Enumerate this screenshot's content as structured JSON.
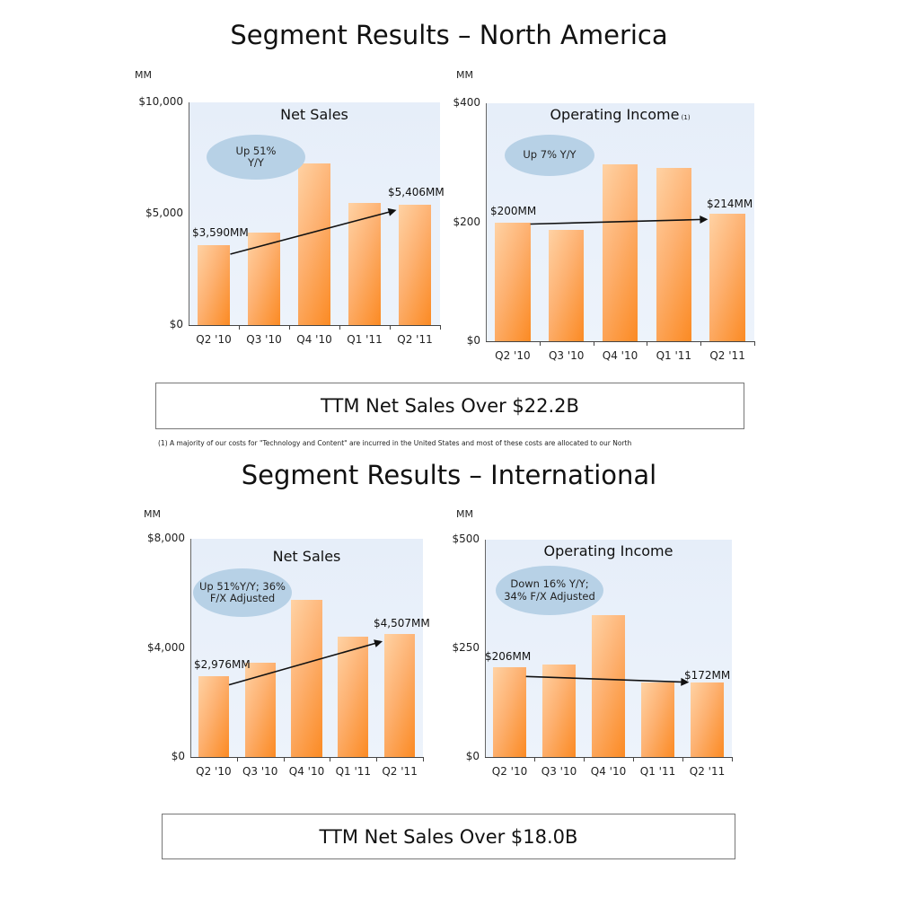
{
  "sections": [
    {
      "title": "Segment Results – North America",
      "ttm": "TTM Net Sales Over $22.2B",
      "footnote": "(1)   A majority of our costs for \"Technology and Content\" are incurred in the United States and most of these costs are allocated to our North"
    },
    {
      "title": "Segment Results – International",
      "ttm": "TTM Net Sales Over $18.0B"
    }
  ],
  "chart_data": [
    {
      "id": "na-net-sales",
      "type": "bar",
      "title": "Net Sales",
      "unit_label": "MM",
      "categories": [
        "Q2 '10",
        "Q3 '10",
        "Q4 '10",
        "Q1 '11",
        "Q2 '11"
      ],
      "values": [
        3590,
        4150,
        7260,
        5480,
        5406
      ],
      "yticks": [
        "$0",
        "$5,000",
        "$10,000"
      ],
      "ylim": [
        0,
        10000
      ],
      "bubble": "Up 51% Y/Y",
      "bubble_lines": [
        "Up 51%",
        "Y/Y"
      ],
      "start_label": "$3,590MM",
      "end_label": "$5,406MM",
      "annotation": "arrow from Q2 '10 to Q2 '11",
      "color": "#fb8a23",
      "background": "#e8f0fa"
    },
    {
      "id": "na-operating-income",
      "type": "bar",
      "title": "Operating Income",
      "title_note": "(1)",
      "unit_label": "MM",
      "categories": [
        "Q2 '10",
        "Q3 '10",
        "Q4 '10",
        "Q1 '11",
        "Q2 '11"
      ],
      "values": [
        200,
        187,
        297,
        292,
        214
      ],
      "yticks": [
        "$0",
        "$200",
        "$400"
      ],
      "ylim": [
        0,
        400
      ],
      "bubble": "Up 7% Y/Y",
      "bubble_lines": [
        "Up 7% Y/Y"
      ],
      "start_label": "$200MM",
      "end_label": "$214MM",
      "annotation": "arrow from Q2 '10 to Q2 '11",
      "color": "#fb8a23",
      "background": "#e8f0fa"
    },
    {
      "id": "intl-net-sales",
      "type": "bar",
      "title": "Net Sales",
      "unit_label": "MM",
      "categories": [
        "Q2 '10",
        "Q3 '10",
        "Q4 '10",
        "Q1 '11",
        "Q2 '11"
      ],
      "values": [
        2976,
        3450,
        5760,
        4410,
        4507
      ],
      "yticks": [
        "$0",
        "$4,000",
        "$8,000"
      ],
      "ylim": [
        0,
        8000
      ],
      "bubble": "Up 51%Y/Y; 36% F/X Adjusted",
      "bubble_lines": [
        "Up 51%Y/Y; 36%",
        "F/X Adjusted"
      ],
      "start_label": "$2,976MM",
      "end_label": "$4,507MM",
      "annotation": "arrow from Q2 '10 to Q2 '11",
      "color": "#fb8a23",
      "background": "#e8f0fa"
    },
    {
      "id": "intl-operating-income",
      "type": "bar",
      "title": "Operating Income",
      "unit_label": "MM",
      "categories": [
        "Q2 '10",
        "Q3 '10",
        "Q4 '10",
        "Q1 '11",
        "Q2 '11"
      ],
      "values": [
        206,
        213,
        326,
        171,
        172
      ],
      "yticks": [
        "$0",
        "$250",
        "$500"
      ],
      "ylim": [
        0,
        500
      ],
      "bubble": "Down 16% Y/Y; 34% F/X Adjusted",
      "bubble_lines": [
        "Down 16% Y/Y;",
        "34% F/X Adjusted"
      ],
      "start_label": "$206MM",
      "end_label": "$172MM",
      "annotation": "arrow from Q2 '10 to Q2 '11",
      "color": "#fb8a23",
      "background": "#e8f0fa"
    }
  ]
}
